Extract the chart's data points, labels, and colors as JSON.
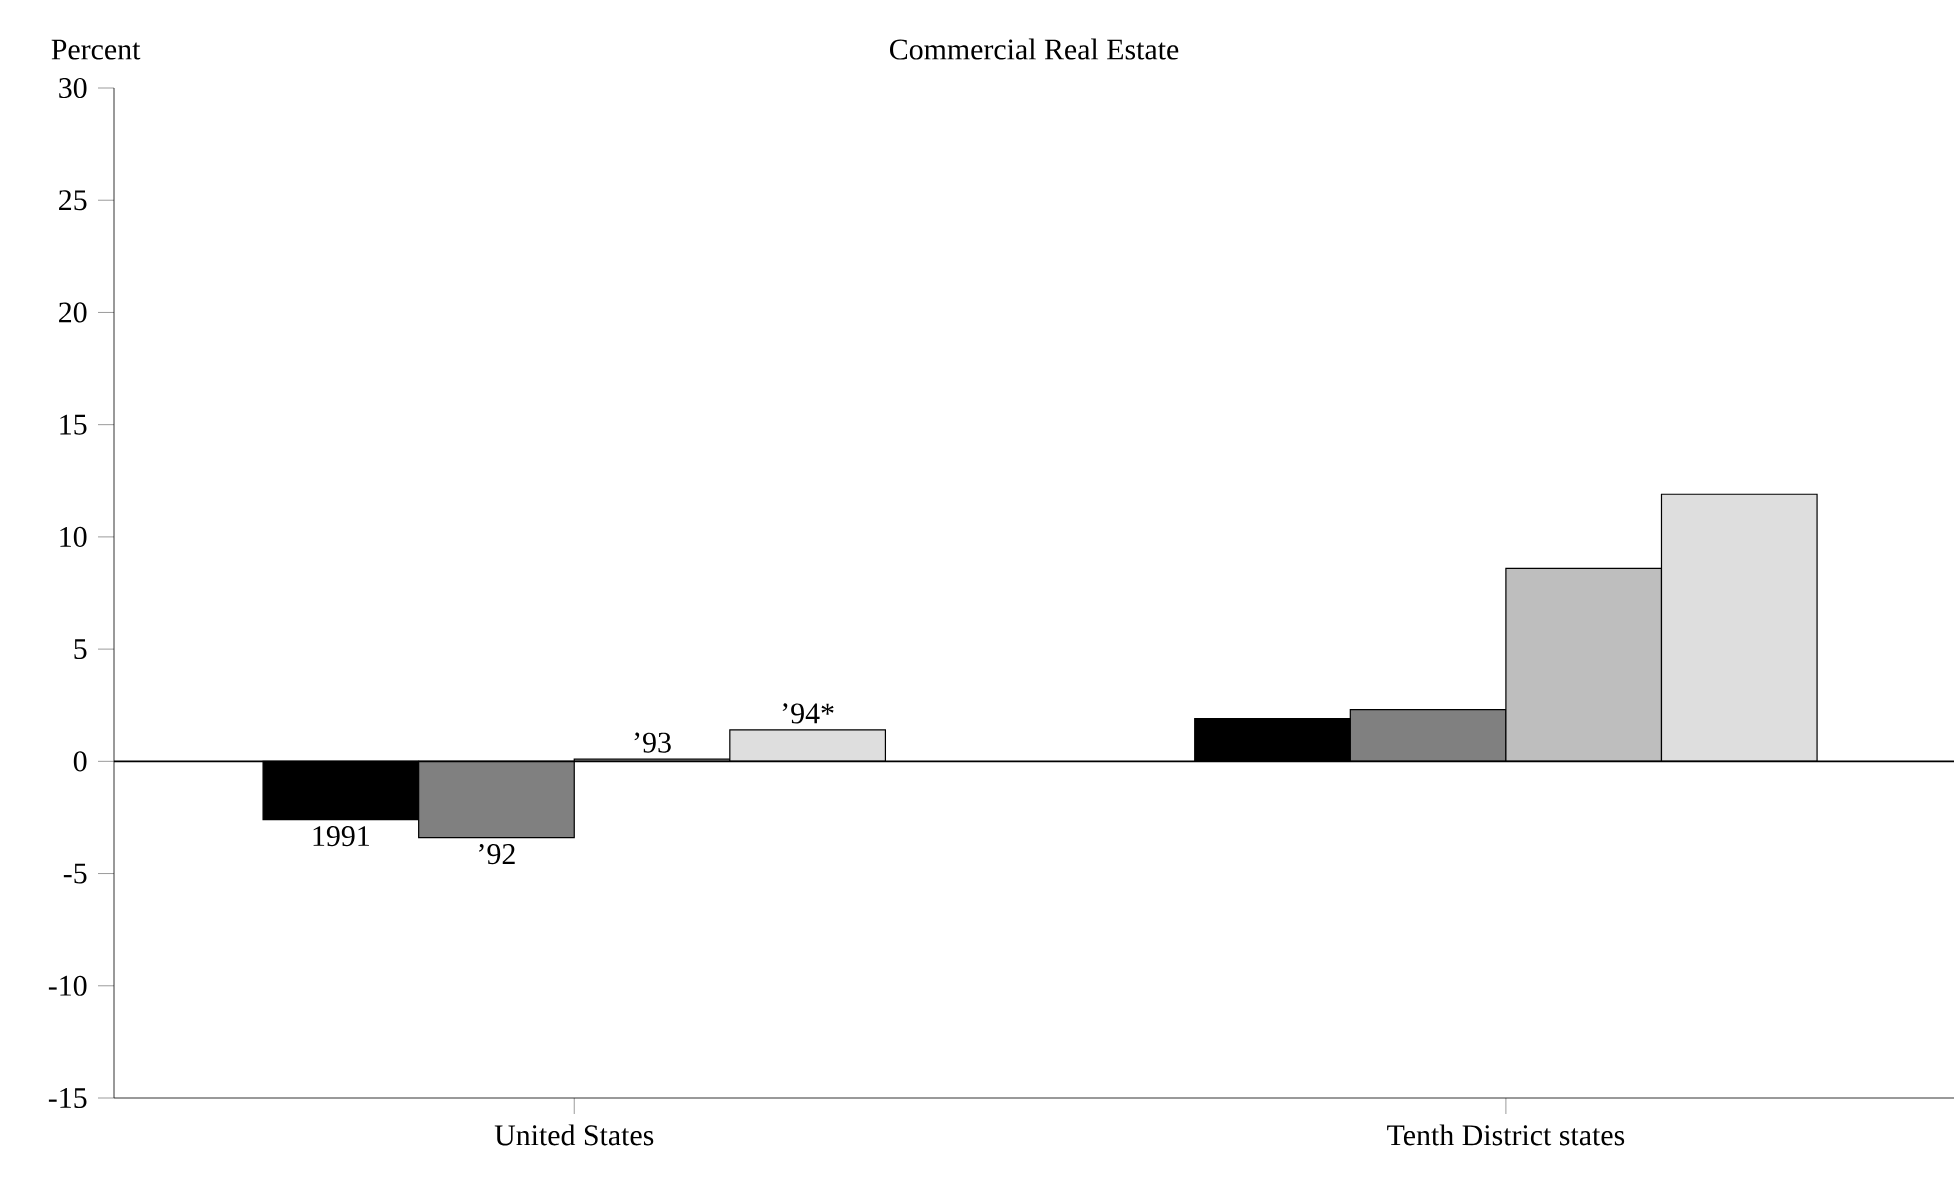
{
  "chart_data": {
    "type": "bar",
    "title": "Commercial Real Estate",
    "ylabel": "Percent",
    "categories": [
      "United States",
      "Tenth District states"
    ],
    "series": [
      {
        "name": "1991",
        "color": "#000000",
        "values": [
          -2.6,
          1.9
        ]
      },
      {
        "name": "’92",
        "color": "#808080",
        "values": [
          -3.4,
          2.3
        ]
      },
      {
        "name": "’93",
        "color": "#bebebe",
        "values": [
          0.1,
          8.6
        ]
      },
      {
        "name": "’94*",
        "color": "#dedede",
        "values": [
          1.4,
          11.9
        ]
      }
    ],
    "ylim": [
      -15,
      30
    ],
    "yticks": [
      -15,
      -10,
      -5,
      0,
      5,
      10,
      15,
      20,
      25,
      30
    ],
    "ref_lines": [
      {
        "axis": "y",
        "value": 0
      }
    ],
    "grid": false,
    "legend": false
  }
}
